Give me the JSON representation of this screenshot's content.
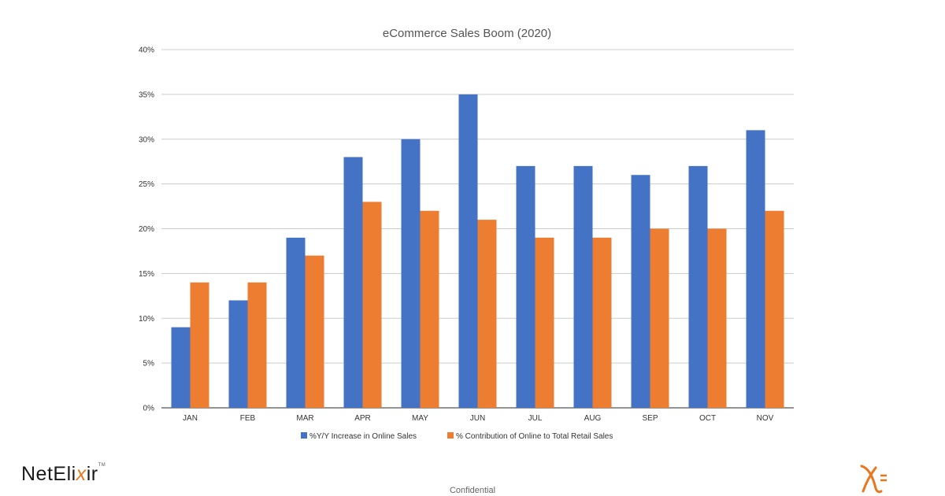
{
  "footer": {
    "confidential": "Confidential",
    "brand_logo": "NetElixir"
  },
  "chart_data": {
    "type": "bar",
    "title": "eCommerce Sales Boom (2020)",
    "xlabel": "",
    "ylabel": "",
    "categories": [
      "JAN",
      "FEB",
      "MAR",
      "APR",
      "MAY",
      "JUN",
      "JUL",
      "AUG",
      "SEP",
      "OCT",
      "NOV"
    ],
    "series": [
      {
        "name": "%Y/Y Increase in Online Sales",
        "color": "#4472c4",
        "values": [
          9,
          12,
          19,
          28,
          30,
          35,
          27,
          27,
          26,
          27,
          31
        ]
      },
      {
        "name": "% Contribution of Online to Total Retail Sales",
        "color": "#ed7d31",
        "values": [
          14,
          14,
          17,
          23,
          22,
          21,
          19,
          19,
          20,
          20,
          22
        ]
      }
    ],
    "ylim": [
      0,
      40
    ],
    "yticks": [
      "0%",
      "5%",
      "10%",
      "15%",
      "20%",
      "25%",
      "30%",
      "35%",
      "40%"
    ],
    "grid": true,
    "legend_position": "bottom"
  }
}
